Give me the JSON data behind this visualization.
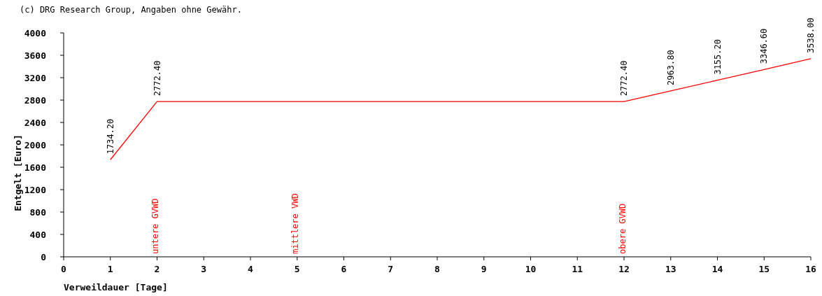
{
  "chart_data": {
    "type": "line",
    "xlabel": "Verweildauer [Tage]",
    "ylabel": "Entgelt [Euro]",
    "x": [
      1,
      2,
      12,
      13,
      14,
      15,
      16
    ],
    "series": [
      {
        "color": "#ff0000",
        "values": [
          1734.2,
          2772.4,
          2772.4,
          2963.8,
          3155.2,
          3346.6,
          3538.0
        ],
        "value_labels": [
          "1734.20",
          "2772.40",
          "2772.40",
          "2963.80",
          "3155.20",
          "3346.60",
          "3538.00"
        ]
      }
    ],
    "xlim": [
      0,
      16
    ],
    "xticks": [
      0,
      1,
      2,
      3,
      4,
      5,
      6,
      7,
      8,
      9,
      10,
      11,
      12,
      13,
      14,
      15,
      16
    ],
    "ylim": [
      0,
      4000
    ],
    "yticks": [
      0,
      400,
      800,
      1200,
      1600,
      2000,
      2400,
      2800,
      3200,
      3600,
      4000
    ],
    "grid": false,
    "marker": "none",
    "line_style": "solid",
    "annotations": [
      "(c) DRG Research Group, Angaben ohne Gewähr.",
      "untere GVWD",
      "mittlere VWD",
      "obere GVWD"
    ]
  }
}
